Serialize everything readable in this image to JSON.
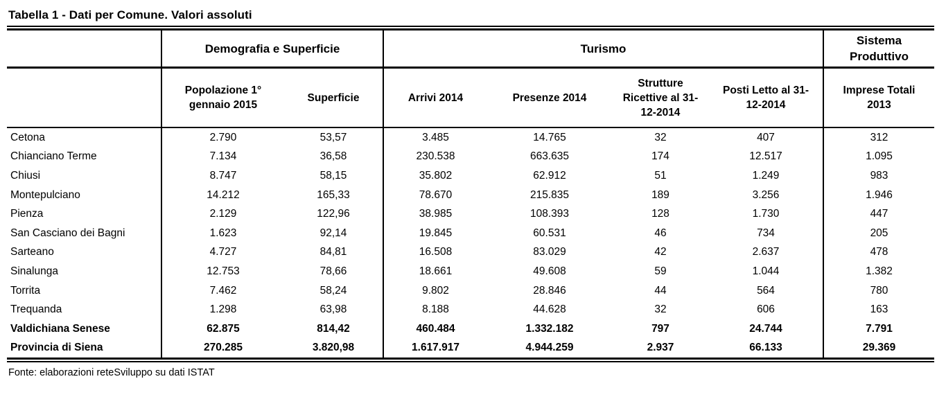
{
  "page": {
    "title": "Tabella 1 - Dati per Comune. Valori assoluti",
    "source_note": "Fonte: elaborazioni reteSviluppo su dati ISTAT"
  },
  "table": {
    "column_groups": [
      {
        "label": "",
        "colspan": 1
      },
      {
        "label": "Demografia e Superficie",
        "colspan": 2
      },
      {
        "label": "Turismo",
        "colspan": 4
      },
      {
        "label": "Sistema\nProduttivo",
        "colspan": 1
      }
    ],
    "columns": [
      "",
      "Popolazione 1°\ngennaio 2015",
      "Superficie",
      "Arrivi 2014",
      "Presenze 2014",
      "Strutture\nRicettive al 31-\n12-2014",
      "Posti Letto al 31-\n12-2014",
      "Imprese Totali\n2013"
    ],
    "rows": [
      {
        "comune": "Cetona",
        "bold": false,
        "values": [
          "2.790",
          "53,57",
          "3.485",
          "14.765",
          "32",
          "407",
          "312"
        ]
      },
      {
        "comune": "Chianciano Terme",
        "bold": false,
        "values": [
          "7.134",
          "36,58",
          "230.538",
          "663.635",
          "174",
          "12.517",
          "1.095"
        ]
      },
      {
        "comune": "Chiusi",
        "bold": false,
        "values": [
          "8.747",
          "58,15",
          "35.802",
          "62.912",
          "51",
          "1.249",
          "983"
        ]
      },
      {
        "comune": "Montepulciano",
        "bold": false,
        "values": [
          "14.212",
          "165,33",
          "78.670",
          "215.835",
          "189",
          "3.256",
          "1.946"
        ]
      },
      {
        "comune": "Pienza",
        "bold": false,
        "values": [
          "2.129",
          "122,96",
          "38.985",
          "108.393",
          "128",
          "1.730",
          "447"
        ]
      },
      {
        "comune": "San Casciano dei Bagni",
        "bold": false,
        "values": [
          "1.623",
          "92,14",
          "19.845",
          "60.531",
          "46",
          "734",
          "205"
        ]
      },
      {
        "comune": "Sarteano",
        "bold": false,
        "values": [
          "4.727",
          "84,81",
          "16.508",
          "83.029",
          "42",
          "2.637",
          "478"
        ]
      },
      {
        "comune": "Sinalunga",
        "bold": false,
        "values": [
          "12.753",
          "78,66",
          "18.661",
          "49.608",
          "59",
          "1.044",
          "1.382"
        ]
      },
      {
        "comune": "Torrita",
        "bold": false,
        "values": [
          "7.462",
          "58,24",
          "9.802",
          "28.846",
          "44",
          "564",
          "780"
        ]
      },
      {
        "comune": "Trequanda",
        "bold": false,
        "values": [
          "1.298",
          "63,98",
          "8.188",
          "44.628",
          "32",
          "606",
          "163"
        ]
      },
      {
        "comune": "Valdichiana Senese",
        "bold": true,
        "values": [
          "62.875",
          "814,42",
          "460.484",
          "1.332.182",
          "797",
          "24.744",
          "7.791"
        ]
      },
      {
        "comune": "Provincia di Siena",
        "bold": true,
        "values": [
          "270.285",
          "3.820,98",
          "1.617.917",
          "4.944.259",
          "2.937",
          "66.133",
          "29.369"
        ]
      }
    ]
  }
}
